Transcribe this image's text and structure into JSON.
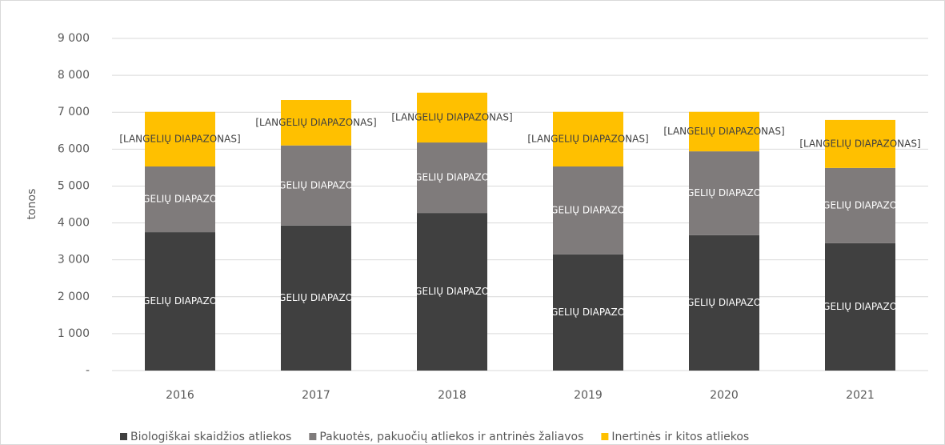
{
  "chart_data": {
    "type": "stacked_bar",
    "y_label": "tonos",
    "categories": [
      "2016",
      "2017",
      "2018",
      "2019",
      "2020",
      "2021"
    ],
    "series": [
      {
        "name": "Biologiškai skaidžios atliekos",
        "color": "#404040",
        "label_color": "#ffffff",
        "values": [
          3750,
          3930,
          4270,
          3150,
          3670,
          3450
        ],
        "data_labels": [
          "[LANGELIŲ DIAPAZONAS]",
          "[LANGELIŲ DIAPAZONAS]",
          "[LANGELIŲ DIAPAZONAS]",
          "[LANGELIŲ DIAPAZONAS]",
          "[LANGELIŲ DIAPAZONAS]",
          "[LANGELIŲ DIAPAZONAS]"
        ]
      },
      {
        "name": "Pakuotės, pakuočių atliekos ir antrinės žaliavos",
        "color": "#7f7b7b",
        "label_color": "#ffffff",
        "values": [
          1780,
          2170,
          1910,
          2380,
          2270,
          2040
        ],
        "data_labels": [
          "[LANGELIŲ DIAPAZONAS]",
          "[LANGELIŲ DIAPAZONAS]",
          "[LANGELIŲ DIAPAZONAS]",
          "[LANGELIŲ DIAPAZONAS]",
          "[LANGELIŲ DIAPAZONAS]",
          "[LANGELIŲ DIAPAZONAS]"
        ]
      },
      {
        "name": "Inertinės ir kitos atliekos",
        "color": "#ffc000",
        "label_color": "#404040",
        "values": [
          1480,
          1230,
          1350,
          1480,
          1070,
          1300
        ],
        "data_labels": [
          "[LANGELIŲ DIAPAZONAS]",
          "[LANGELIŲ DIAPAZONAS]",
          "[LANGELIŲ DIAPAZONAS]",
          "[LANGELIŲ DIAPAZONAS]",
          "[LANGELIŲ DIAPAZONAS]",
          "[LANGELIŲ DIAPAZONAS]"
        ]
      }
    ],
    "ylim": [
      0,
      9000
    ],
    "yticks": [
      {
        "value": 0,
        "label": "-"
      },
      {
        "value": 1000,
        "label": "1 000"
      },
      {
        "value": 2000,
        "label": "2 000"
      },
      {
        "value": 3000,
        "label": "3 000"
      },
      {
        "value": 4000,
        "label": "4 000"
      },
      {
        "value": 5000,
        "label": "5 000"
      },
      {
        "value": 6000,
        "label": "6 000"
      },
      {
        "value": 7000,
        "label": "7 000"
      },
      {
        "value": 8000,
        "label": "8 000"
      },
      {
        "value": 9000,
        "label": "9 000"
      }
    ],
    "grid": true,
    "legend": "bottom"
  }
}
